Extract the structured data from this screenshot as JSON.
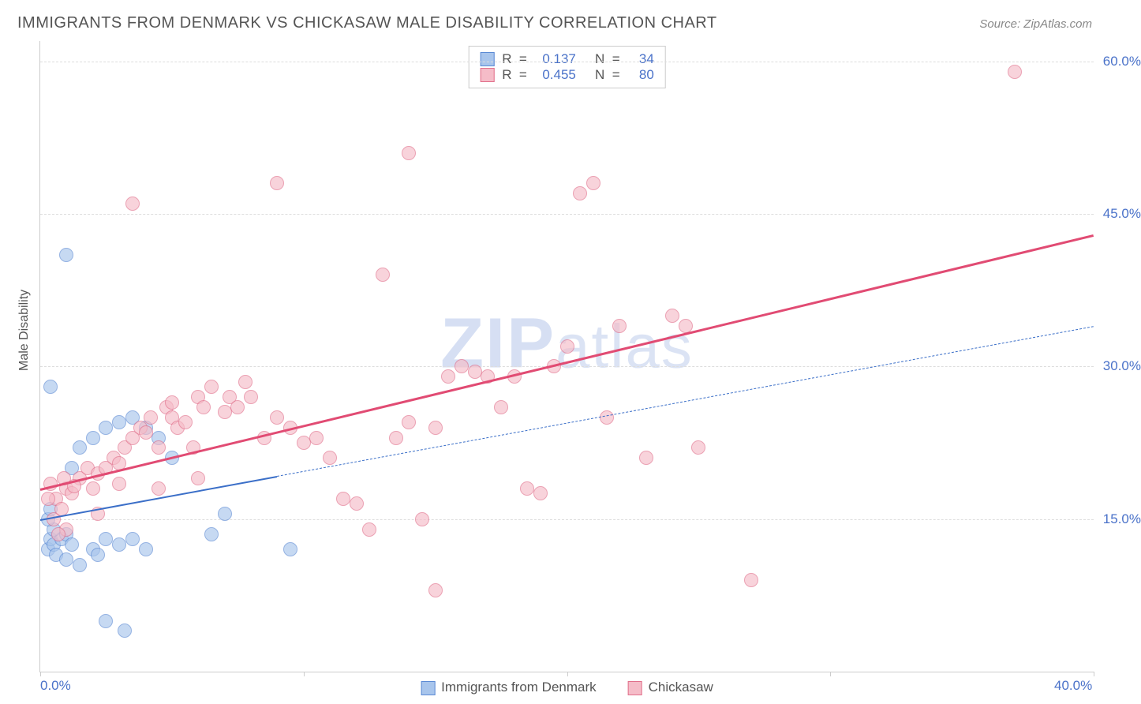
{
  "title": "IMMIGRANTS FROM DENMARK VS CHICKASAW MALE DISABILITY CORRELATION CHART",
  "source_label": "Source:",
  "source_value": "ZipAtlas.com",
  "y_axis_label": "Male Disability",
  "watermark_zip": "ZIP",
  "watermark_atlas": "atlas",
  "chart": {
    "type": "scatter",
    "xlim": [
      0,
      40
    ],
    "ylim": [
      0,
      62
    ],
    "x_ticks": [
      0,
      10,
      20,
      30,
      40
    ],
    "x_tick_labels": [
      "0.0%",
      "",
      "",
      "",
      "40.0%"
    ],
    "y_ticks": [
      15,
      30,
      45,
      60
    ],
    "y_tick_labels": [
      "15.0%",
      "30.0%",
      "45.0%",
      "60.0%"
    ],
    "grid_color": "#dddddd",
    "axis_color": "#cccccc",
    "background_color": "#ffffff",
    "series": [
      {
        "name": "Immigrants from Denmark",
        "marker_fill": "#a8c5ec",
        "marker_stroke": "#5b8ad4",
        "marker_opacity": 0.65,
        "marker_size": 18,
        "r_value": "0.137",
        "n_value": "34",
        "trend": {
          "x0": 0,
          "y0": 15,
          "x1": 40,
          "y1": 34,
          "solid_until_x": 9,
          "color": "#3b6fc8",
          "width": 2.5
        },
        "points": [
          [
            0.3,
            12
          ],
          [
            0.4,
            13
          ],
          [
            0.5,
            12.5
          ],
          [
            0.6,
            11.5
          ],
          [
            0.8,
            13
          ],
          [
            0.5,
            14
          ],
          [
            0.3,
            15
          ],
          [
            0.4,
            16
          ],
          [
            1.0,
            13.5
          ],
          [
            1.2,
            12.5
          ],
          [
            1.0,
            11
          ],
          [
            1.5,
            10.5
          ],
          [
            2.0,
            12
          ],
          [
            2.5,
            13
          ],
          [
            2.2,
            11.5
          ],
          [
            3.0,
            12.5
          ],
          [
            3.5,
            13
          ],
          [
            4.0,
            12
          ],
          [
            2.5,
            5
          ],
          [
            3.2,
            4
          ],
          [
            1.0,
            41
          ],
          [
            0.4,
            28
          ],
          [
            1.5,
            22
          ],
          [
            2.0,
            23
          ],
          [
            2.5,
            24
          ],
          [
            3.0,
            24.5
          ],
          [
            3.5,
            25
          ],
          [
            1.2,
            20
          ],
          [
            4.0,
            24
          ],
          [
            4.5,
            23
          ],
          [
            5.0,
            21
          ],
          [
            6.5,
            13.5
          ],
          [
            7.0,
            15.5
          ],
          [
            9.5,
            12
          ]
        ]
      },
      {
        "name": "Chickasaw",
        "marker_fill": "#f5bcc8",
        "marker_stroke": "#e16f8b",
        "marker_opacity": 0.65,
        "marker_size": 18,
        "r_value": "0.455",
        "n_value": "80",
        "trend": {
          "x0": 0,
          "y0": 18,
          "x1": 40,
          "y1": 43,
          "solid_until_x": 40,
          "color": "#e14b73",
          "width": 3
        },
        "points": [
          [
            0.5,
            15
          ],
          [
            0.6,
            17
          ],
          [
            0.8,
            16
          ],
          [
            1.0,
            18
          ],
          [
            1.2,
            17.5
          ],
          [
            0.4,
            18.5
          ],
          [
            0.3,
            17
          ],
          [
            1.5,
            19
          ],
          [
            1.8,
            20
          ],
          [
            2.0,
            18
          ],
          [
            2.2,
            19.5
          ],
          [
            2.5,
            20
          ],
          [
            2.8,
            21
          ],
          [
            3.0,
            20.5
          ],
          [
            3.2,
            22
          ],
          [
            3.5,
            23
          ],
          [
            3.8,
            24
          ],
          [
            4.0,
            23.5
          ],
          [
            4.2,
            25
          ],
          [
            4.5,
            18
          ],
          [
            4.8,
            26
          ],
          [
            5.0,
            25
          ],
          [
            5.2,
            24
          ],
          [
            5.5,
            24.5
          ],
          [
            5.8,
            22
          ],
          [
            6.0,
            27
          ],
          [
            6.2,
            26
          ],
          [
            6.5,
            28
          ],
          [
            7.0,
            25.5
          ],
          [
            7.2,
            27
          ],
          [
            7.5,
            26
          ],
          [
            7.8,
            28.5
          ],
          [
            8.0,
            27
          ],
          [
            8.5,
            23
          ],
          [
            9.0,
            25
          ],
          [
            9.5,
            24
          ],
          [
            10.0,
            22.5
          ],
          [
            10.5,
            23
          ],
          [
            11.0,
            21
          ],
          [
            11.5,
            17
          ],
          [
            12.0,
            16.5
          ],
          [
            12.5,
            14
          ],
          [
            13.0,
            39
          ],
          [
            13.5,
            23
          ],
          [
            14.0,
            24.5
          ],
          [
            14.5,
            15
          ],
          [
            15.0,
            24
          ],
          [
            15.5,
            29
          ],
          [
            16.0,
            30
          ],
          [
            16.5,
            29.5
          ],
          [
            17.0,
            29
          ],
          [
            17.5,
            26
          ],
          [
            18.0,
            29
          ],
          [
            18.5,
            18
          ],
          [
            19.0,
            17.5
          ],
          [
            19.5,
            30
          ],
          [
            20.0,
            32
          ],
          [
            20.5,
            47
          ],
          [
            21.0,
            48
          ],
          [
            21.5,
            25
          ],
          [
            22.0,
            34
          ],
          [
            23.0,
            21
          ],
          [
            24.0,
            35
          ],
          [
            24.5,
            34
          ],
          [
            25.0,
            22
          ],
          [
            27.0,
            9
          ],
          [
            3.5,
            46
          ],
          [
            5.0,
            26.5
          ],
          [
            6.0,
            19
          ],
          [
            9.0,
            48
          ],
          [
            14.0,
            51
          ],
          [
            15.0,
            8
          ],
          [
            2.2,
            15.5
          ],
          [
            1.0,
            14
          ],
          [
            0.7,
            13.5
          ],
          [
            0.9,
            19
          ],
          [
            1.3,
            18.2
          ],
          [
            37.0,
            59
          ],
          [
            4.5,
            22
          ],
          [
            3.0,
            18.5
          ]
        ]
      }
    ]
  },
  "legend_bottom": [
    {
      "label": "Immigrants from Denmark",
      "fill": "#a8c5ec",
      "stroke": "#5b8ad4"
    },
    {
      "label": "Chickasaw",
      "fill": "#f5bcc8",
      "stroke": "#e16f8b"
    }
  ],
  "stats_box": {
    "r_label": "R  =  ",
    "n_label": "   N  =   "
  }
}
